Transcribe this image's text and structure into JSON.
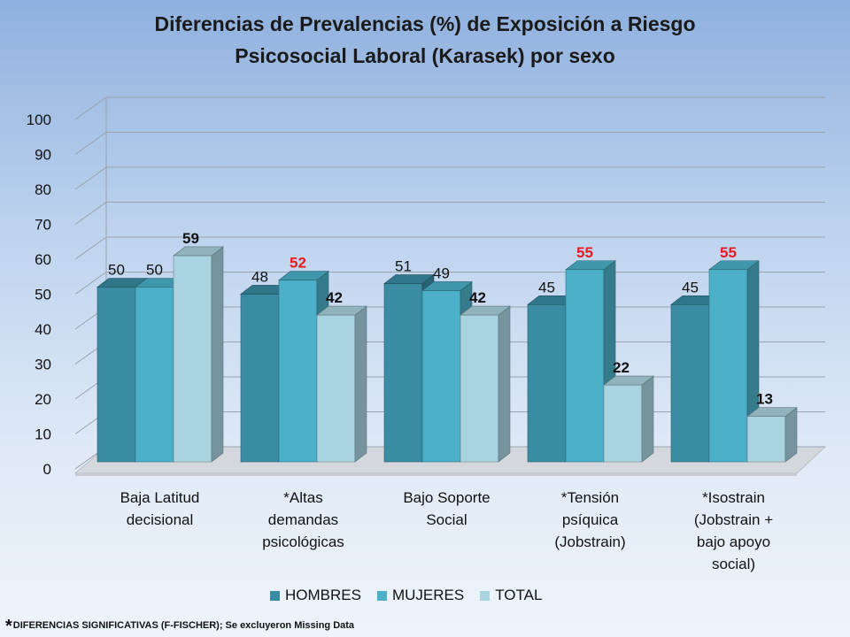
{
  "chart_data": {
    "type": "bar",
    "title_lines": [
      "Diferencias de Prevalencias (%) de Exposición a Riesgo",
      "Psicosocial Laboral (Karasek) por sexo"
    ],
    "categories": [
      [
        "Baja Latitud",
        "decisional"
      ],
      [
        "*Altas",
        "demandas",
        "psicológicas"
      ],
      [
        "Bajo Soporte",
        "Social"
      ],
      [
        "*Tensión",
        "psíquica",
        "(Jobstrain)"
      ],
      [
        "*Isostrain",
        "(Jobstrain +",
        "bajo apoyo",
        "social)"
      ]
    ],
    "series": [
      {
        "name": "HOMBRES",
        "values": [
          50,
          48,
          51,
          45,
          45
        ],
        "color": "#3a8ca3"
      },
      {
        "name": "MUJERES",
        "values": [
          50,
          52,
          49,
          55,
          55
        ],
        "color": "#4bb0c8"
      },
      {
        "name": "TOTAL",
        "values": [
          59,
          42,
          42,
          22,
          13
        ],
        "color": "#a9d3e0"
      }
    ],
    "data_label_styles": [
      [
        "normal",
        "normal",
        "bold"
      ],
      [
        "normal",
        "red-bold",
        "bold"
      ],
      [
        "normal",
        "normal",
        "bold"
      ],
      [
        "normal",
        "red-bold",
        "bold"
      ],
      [
        "normal",
        "red-bold",
        "bold"
      ]
    ],
    "y_ticks": [
      0,
      10,
      20,
      30,
      40,
      50,
      60,
      70,
      80,
      90,
      100
    ],
    "ylim": [
      0,
      100
    ],
    "grid": true,
    "legend_position": "bottom",
    "footnote": "DIFERENCIAS SIGNIFICATIVAS (F-FISCHER); Se excluyeron Missing Data",
    "footnote_mark": "*"
  }
}
